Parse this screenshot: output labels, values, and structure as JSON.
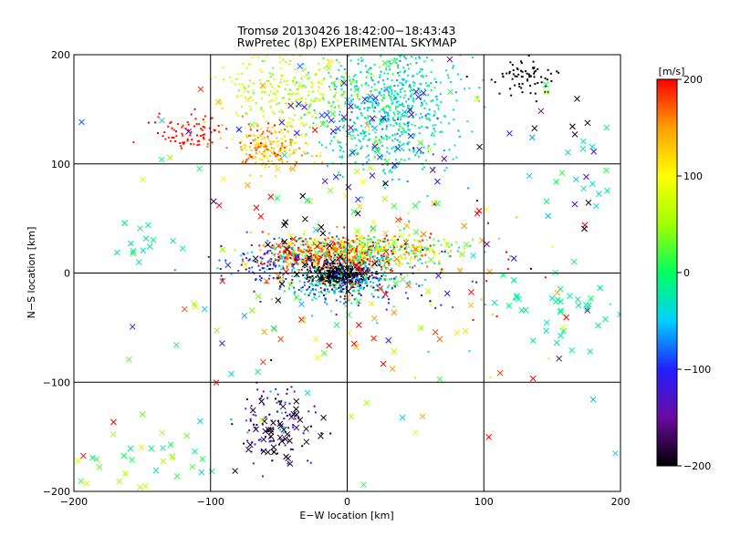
{
  "chart_data": {
    "type": "scatter",
    "title": "Tromsø 20130426 18:42:00−18:43:43",
    "subtitle": "RwPretec (8p) EXPERIMENTAL SKYMAP",
    "xlabel": "E−W location [km]",
    "ylabel": "N−S location [km]",
    "xlim": [
      -200,
      200
    ],
    "ylim": [
      -200,
      200
    ],
    "xticks": [
      -200,
      -100,
      0,
      100,
      200
    ],
    "yticks": [
      -200,
      -100,
      0,
      100,
      200
    ],
    "grid": true,
    "colorbar": {
      "label": "[m/s]",
      "min": -200,
      "max": 200,
      "ticks": [
        -200,
        -100,
        0,
        100,
        200
      ],
      "colormap": [
        "#000000",
        "#6a0aa0",
        "#2020ff",
        "#00d0ff",
        "#00ff60",
        "#a0ff00",
        "#ffff00",
        "#ffa000",
        "#ff0000"
      ]
    },
    "markers": [
      "dot",
      "x"
    ],
    "clusters": [
      {
        "cx": 30,
        "cy": 150,
        "sx": 25,
        "sy": 30,
        "n": 700,
        "v": -30,
        "vs": 25,
        "m": "dot"
      },
      {
        "cx": -40,
        "cy": 165,
        "sx": 25,
        "sy": 20,
        "n": 300,
        "v": 70,
        "vs": 25,
        "m": "dot"
      },
      {
        "cx": -55,
        "cy": 115,
        "sx": 15,
        "sy": 10,
        "n": 200,
        "v": 140,
        "vs": 30,
        "m": "dot"
      },
      {
        "cx": -115,
        "cy": 130,
        "sx": 12,
        "sy": 8,
        "n": 80,
        "v": 200,
        "vs": 10,
        "m": "dot"
      },
      {
        "cx": 130,
        "cy": 180,
        "sx": 12,
        "sy": 10,
        "n": 70,
        "v": -200,
        "vs": 5,
        "m": "dot"
      },
      {
        "cx": 10,
        "cy": 20,
        "sx": 30,
        "sy": 8,
        "n": 600,
        "v": 60,
        "vs": 80,
        "m": "dot"
      },
      {
        "cx": -15,
        "cy": 15,
        "sx": 25,
        "sy": 8,
        "n": 300,
        "v": 180,
        "vs": 25,
        "m": "dot"
      },
      {
        "cx": -5,
        "cy": -2,
        "sx": 12,
        "sy": 5,
        "n": 400,
        "v": -200,
        "vs": 5,
        "m": "dot"
      },
      {
        "cx": 0,
        "cy": -10,
        "sx": 25,
        "sy": 10,
        "n": 300,
        "v": -60,
        "vs": 50,
        "m": "dot"
      },
      {
        "cx": -50,
        "cy": 10,
        "sx": 20,
        "sy": 10,
        "n": 150,
        "v": -90,
        "vs": 40,
        "m": "dot"
      },
      {
        "cx": -55,
        "cy": -140,
        "sx": 15,
        "sy": 20,
        "n": 100,
        "v": -140,
        "vs": 50,
        "m": "dot"
      },
      {
        "cx": -50,
        "cy": -150,
        "sx": 15,
        "sy": 15,
        "n": 40,
        "v": -190,
        "vs": 10,
        "m": "x"
      },
      {
        "cx": -30,
        "cy": 140,
        "sx": 50,
        "sy": 40,
        "n": 40,
        "v": 50,
        "vs": 80,
        "m": "x"
      },
      {
        "cx": 20,
        "cy": 140,
        "sx": 30,
        "sy": 30,
        "n": 40,
        "v": -100,
        "vs": 30,
        "m": "x"
      },
      {
        "cx": 150,
        "cy": 130,
        "sx": 20,
        "sy": 20,
        "n": 15,
        "v": -150,
        "vs": 60,
        "m": "x"
      },
      {
        "cx": 170,
        "cy": 80,
        "sx": 15,
        "sy": 30,
        "n": 15,
        "v": -30,
        "vs": 20,
        "m": "x"
      },
      {
        "cx": 150,
        "cy": -30,
        "sx": 30,
        "sy": 15,
        "n": 40,
        "v": -20,
        "vs": 10,
        "m": "x"
      },
      {
        "cx": -150,
        "cy": 30,
        "sx": 15,
        "sy": 10,
        "n": 15,
        "v": -20,
        "vs": 10,
        "m": "x"
      },
      {
        "cx": -140,
        "cy": -175,
        "sx": 25,
        "sy": 15,
        "n": 30,
        "v": 30,
        "vs": 40,
        "m": "x"
      },
      {
        "cx": 20,
        "cy": 20,
        "sx": 50,
        "sy": 30,
        "n": 60,
        "v": 120,
        "vs": 80,
        "m": "x"
      },
      {
        "cx": 0,
        "cy": -60,
        "sx": 40,
        "sy": 30,
        "n": 30,
        "v": 140,
        "vs": 60,
        "m": "x"
      },
      {
        "cx": -20,
        "cy": 30,
        "sx": 20,
        "sy": 20,
        "n": 20,
        "v": -200,
        "vs": 5,
        "m": "x"
      },
      {
        "cx": 60,
        "cy": 10,
        "sx": 50,
        "sy": 40,
        "n": 80,
        "v": 0,
        "vs": 150,
        "m": "dot"
      },
      {
        "cx": 0,
        "cy": 0,
        "sx": 120,
        "sy": 120,
        "n": 120,
        "v": 0,
        "vs": 140,
        "m": "x"
      }
    ]
  }
}
